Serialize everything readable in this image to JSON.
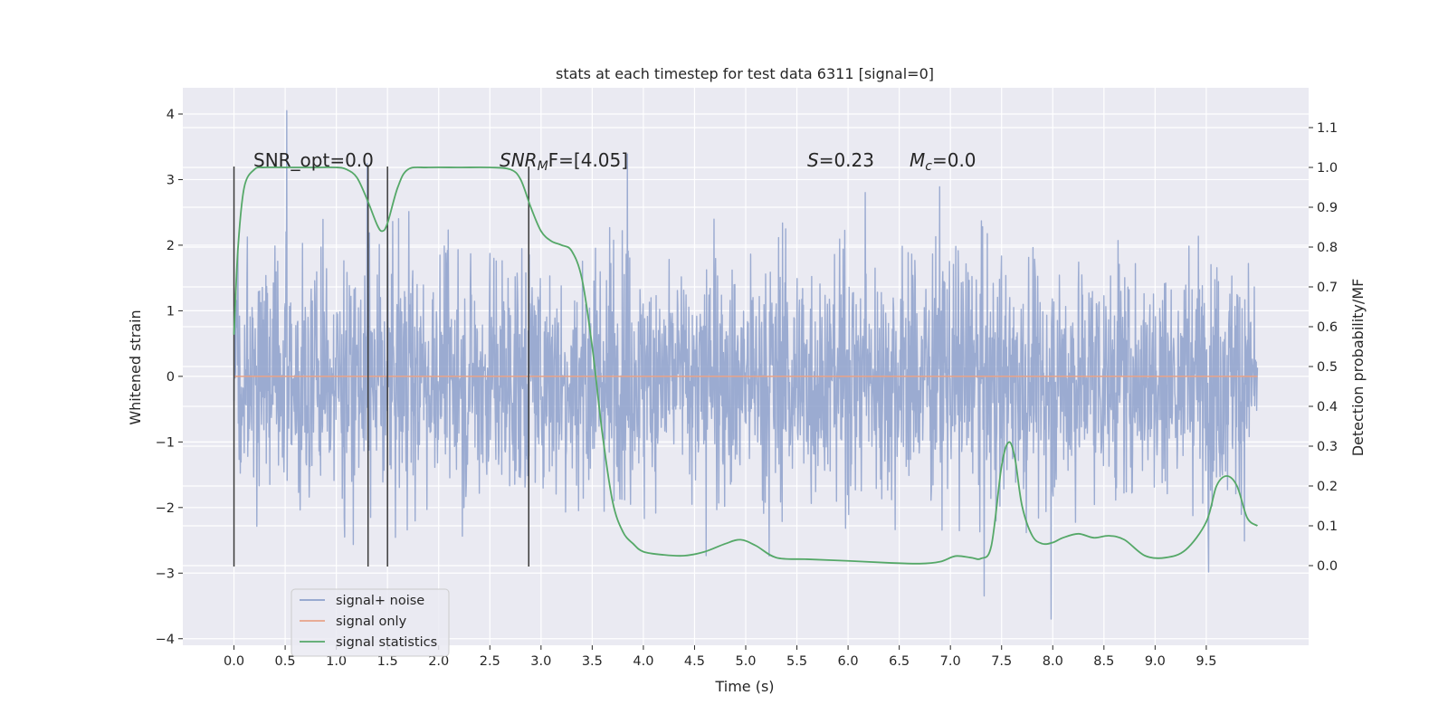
{
  "chart_data": {
    "type": "line",
    "title": "stats at each timestep for test data 6311 [signal=0]",
    "xlabel": "Time (s)",
    "ylabel": "Whitened strain",
    "ylabel_right": "Detection probability/MF",
    "xlim": [
      -0.5,
      10.5
    ],
    "ylim": [
      -4.1,
      4.4
    ],
    "ylim_right": [
      -0.2,
      1.2
    ],
    "x_ticks": [
      "0.0",
      "0.5",
      "1.0",
      "1.5",
      "2.0",
      "2.5",
      "3.0",
      "3.5",
      "4.0",
      "4.5",
      "5.0",
      "5.5",
      "6.0",
      "6.5",
      "7.0",
      "7.5",
      "8.0",
      "8.5",
      "9.0",
      "9.5"
    ],
    "y_ticks": [
      "4",
      "3",
      "2",
      "1",
      "0",
      "−1",
      "−2",
      "−3",
      "−4"
    ],
    "y_right_ticks": [
      "1.1",
      "1.0",
      "0.9",
      "0.8",
      "0.7",
      "0.6",
      "0.5",
      "0.4",
      "0.3",
      "0.2",
      "0.1",
      "0.0"
    ],
    "grid": true,
    "legend_position": "lower-left",
    "annotations": {
      "snr_opt": "SNR_opt=0.0",
      "snr_mf": "SNR",
      "snr_mf_sub": "M",
      "snr_mf_rest": "F=[4.05]",
      "s_label": "S",
      "s_value": "=0.23",
      "mc_label": "M",
      "mc_sub": "c",
      "mc_value": "=0.0"
    },
    "series": [
      {
        "name": "signal+ noise",
        "color": "#8da0cb",
        "note": "dense whitened noise, time 0 to 10 s",
        "x_range": [
          0.0,
          10.0
        ],
        "envelope_y": [
          -3.7,
          4.05
        ]
      },
      {
        "name": "signal only",
        "color": "#e7a388",
        "x": [
          0.0,
          10.0
        ],
        "y": [
          0.0,
          0.0
        ]
      },
      {
        "name": "signal statistics",
        "color": "#55a868",
        "axis": "right",
        "x": [
          0.0,
          0.04,
          0.1,
          0.2,
          0.3,
          0.5,
          0.8,
          1.0,
          1.1,
          1.2,
          1.3,
          1.4,
          1.45,
          1.5,
          1.6,
          1.7,
          1.9,
          2.2,
          2.5,
          2.7,
          2.8,
          2.9,
          3.0,
          3.1,
          3.2,
          3.3,
          3.4,
          3.5,
          3.6,
          3.7,
          3.8,
          3.9,
          4.0,
          4.2,
          4.4,
          4.6,
          4.8,
          4.95,
          5.1,
          5.3,
          5.6,
          6.0,
          6.4,
          6.7,
          6.9,
          7.05,
          7.2,
          7.3,
          7.4,
          7.5,
          7.57,
          7.63,
          7.7,
          7.8,
          7.9,
          8.0,
          8.1,
          8.25,
          8.4,
          8.55,
          8.7,
          8.9,
          9.1,
          9.3,
          9.5,
          9.6,
          9.7,
          9.8,
          9.9,
          10.0
        ],
        "y": [
          0.58,
          0.8,
          0.95,
          0.995,
          1.0,
          1.0,
          1.0,
          1.0,
          0.995,
          0.975,
          0.92,
          0.855,
          0.84,
          0.86,
          0.95,
          0.995,
          1.0,
          1.0,
          1.0,
          0.995,
          0.97,
          0.9,
          0.84,
          0.815,
          0.805,
          0.79,
          0.72,
          0.55,
          0.33,
          0.16,
          0.085,
          0.055,
          0.035,
          0.027,
          0.025,
          0.035,
          0.055,
          0.065,
          0.05,
          0.02,
          0.016,
          0.012,
          0.007,
          0.005,
          0.01,
          0.024,
          0.02,
          0.018,
          0.05,
          0.25,
          0.31,
          0.27,
          0.15,
          0.075,
          0.055,
          0.058,
          0.07,
          0.08,
          0.07,
          0.075,
          0.065,
          0.025,
          0.02,
          0.04,
          0.11,
          0.2,
          0.225,
          0.2,
          0.12,
          0.1
        ]
      }
    ],
    "vertical_markers": {
      "color": "#3a3a3a",
      "x": [
        0.0,
        1.31,
        1.5,
        2.88
      ],
      "y_top": 3.2,
      "y_bottom": -2.9
    }
  }
}
